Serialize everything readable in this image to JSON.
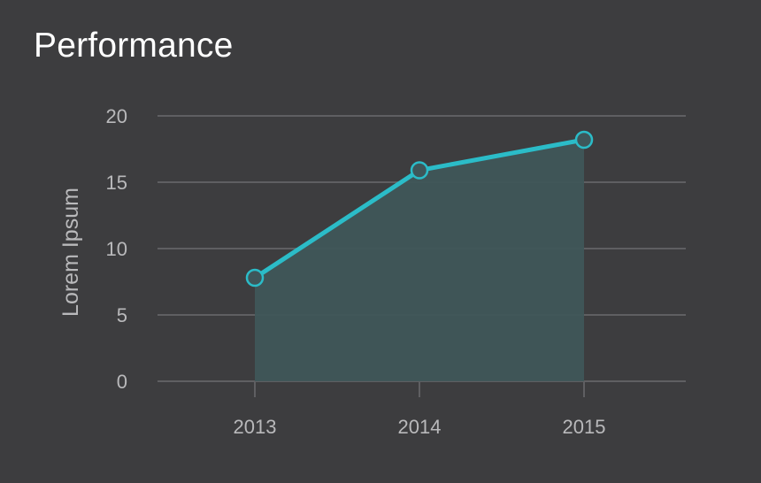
{
  "chart_data": {
    "type": "area",
    "title": "Performance",
    "xlabel": "",
    "ylabel": "Lorem Ipsum",
    "categories": [
      "2013",
      "2014",
      "2015"
    ],
    "values": [
      7.8,
      15.9,
      18.2
    ],
    "ylim": [
      0,
      20
    ],
    "yticks": [
      "0",
      "5",
      "10",
      "15",
      "20"
    ],
    "grid": true,
    "legend": "none",
    "colors": {
      "background": "#3d3d3f",
      "line": "#2bbcc8",
      "area": "#3f5659",
      "grid": "#5f5f62",
      "text": "#b9b9bb",
      "title": "#ffffff"
    }
  }
}
